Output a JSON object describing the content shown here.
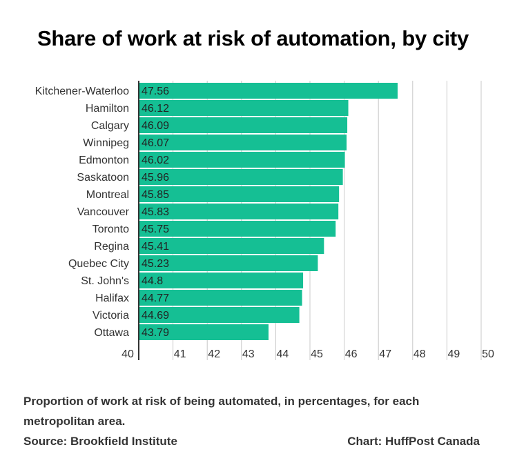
{
  "chart_data": {
    "type": "bar",
    "orientation": "horizontal",
    "title": "Share of work at risk of automation, by city",
    "categories": [
      "Kitchener-Waterloo",
      "Hamilton",
      "Calgary",
      "Winnipeg",
      "Edmonton",
      "Saskatoon",
      "Montreal",
      "Vancouver",
      "Toronto",
      "Regina",
      "Quebec City",
      "St. John's",
      "Halifax",
      "Victoria",
      "Ottawa"
    ],
    "values": [
      47.56,
      46.12,
      46.09,
      46.07,
      46.02,
      45.96,
      45.85,
      45.83,
      45.75,
      45.41,
      45.23,
      44.8,
      44.77,
      44.69,
      43.79
    ],
    "value_labels": [
      "47.56",
      "46.12",
      "46.09",
      "46.07",
      "46.02",
      "45.96",
      "45.85",
      "45.83",
      "45.75",
      "45.41",
      "45.23",
      "44.8",
      "44.77",
      "44.69",
      "43.79"
    ],
    "xlim": [
      40,
      50
    ],
    "xticks": [
      "40",
      "41",
      "42",
      "43",
      "44",
      "45",
      "46",
      "47",
      "48",
      "49",
      "50"
    ],
    "grid": true,
    "bar_color": "#15bf94",
    "caption": "Proportion of work at risk of being automated, in percentages, for each metropolitan area.",
    "source": "Source: Brookfield Institute",
    "credit": "Chart: HuffPost Canada"
  }
}
